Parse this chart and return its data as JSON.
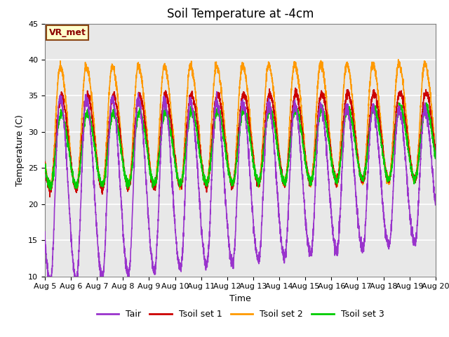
{
  "title": "Soil Temperature at -4cm",
  "xlabel": "Time",
  "ylabel": "Temperature (C)",
  "ylim": [
    10,
    45
  ],
  "n_days": 15,
  "date_labels": [
    "Aug 5",
    "Aug 6",
    "Aug 7",
    "Aug 8",
    "Aug 9",
    "Aug 10",
    "Aug 11",
    "Aug 12",
    "Aug 13",
    "Aug 14",
    "Aug 15",
    "Aug 16",
    "Aug 17",
    "Aug 18",
    "Aug 19",
    "Aug 20"
  ],
  "colors": {
    "Tair": "#9933CC",
    "Tsoil_set1": "#CC0000",
    "Tsoil_set2": "#FF9900",
    "Tsoil_set3": "#00CC00"
  },
  "legend_labels": [
    "Tair",
    "Tsoil set 1",
    "Tsoil set 2",
    "Tsoil set 3"
  ],
  "annotation_text": "VR_met",
  "plot_bg_color": "#E8E8E8",
  "grid_color": "white",
  "title_fontsize": 12,
  "axis_fontsize": 9,
  "tick_fontsize": 8,
  "line_width": 1.2
}
